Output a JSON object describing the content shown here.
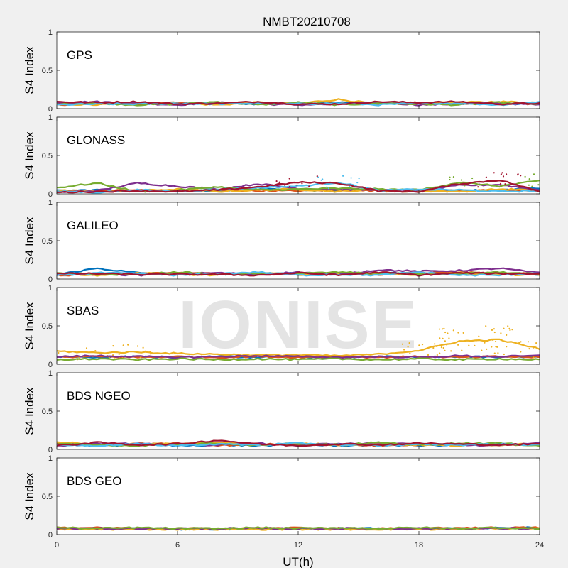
{
  "figure": {
    "title": "NMBT20210708",
    "watermark": "IONISE",
    "background": "#f0f0f0"
  },
  "chart_data": {
    "type": "scatter",
    "title": "NMBT20210708",
    "xlabel": "UT(h)",
    "ylabel": "S4 Index",
    "xlim": [
      0,
      24
    ],
    "ylim": [
      0,
      1
    ],
    "xticks": [
      "0",
      "6",
      "12",
      "18",
      "24"
    ],
    "yticks": [
      "0",
      "0.5",
      "1"
    ],
    "series_colors": [
      "#0072BD",
      "#D95319",
      "#EDB120",
      "#7E2F8E",
      "#77AC30",
      "#4DBEEE",
      "#A2142F"
    ],
    "panels": [
      {
        "name": "GPS",
        "x": [
          0,
          2,
          4,
          6,
          8,
          10,
          12,
          14,
          16,
          18,
          20,
          22,
          24
        ],
        "series": [
          {
            "values": [
              0.07,
              0.06,
              0.07,
              0.06,
              0.07,
              0.06,
              0.07,
              0.08,
              0.07,
              0.06,
              0.07,
              0.06,
              0.07
            ]
          },
          {
            "values": [
              0.05,
              0.07,
              0.06,
              0.08,
              0.06,
              0.07,
              0.06,
              0.07,
              0.06,
              0.08,
              0.06,
              0.07,
              0.06
            ]
          },
          {
            "values": [
              0.06,
              0.05,
              0.08,
              0.07,
              0.05,
              0.08,
              0.07,
              0.12,
              0.06,
              0.07,
              0.08,
              0.09,
              0.08
            ]
          },
          {
            "values": [
              0.08,
              0.09,
              0.07,
              0.05,
              0.08,
              0.06,
              0.05,
              0.06,
              0.08,
              0.05,
              0.06,
              0.07,
              0.05
            ]
          },
          {
            "values": [
              0.06,
              0.07,
              0.05,
              0.06,
              0.09,
              0.05,
              0.08,
              0.05,
              0.07,
              0.06,
              0.05,
              0.08,
              0.06
            ]
          },
          {
            "values": [
              0.05,
              0.06,
              0.06,
              0.07,
              0.06,
              0.07,
              0.06,
              0.07,
              0.05,
              0.07,
              0.07,
              0.05,
              0.09
            ]
          },
          {
            "values": [
              0.09,
              0.08,
              0.09,
              0.06,
              0.07,
              0.09,
              0.06,
              0.06,
              0.09,
              0.08,
              0.09,
              0.06,
              0.07
            ]
          }
        ]
      },
      {
        "name": "GLONASS",
        "x": [
          0,
          2,
          4,
          6,
          8,
          10,
          12,
          14,
          16,
          18,
          20,
          22,
          24
        ],
        "series": [
          {
            "values": [
              0.04,
              0.05,
              0.04,
              0.05,
              0.04,
              0.06,
              0.05,
              0.04,
              0.05,
              0.05,
              0.04,
              0.05,
              0.07
            ]
          },
          {
            "values": [
              0.03,
              0.04,
              0.05,
              0.04,
              0.05,
              0.04,
              0.04,
              0.05,
              0.04,
              0.03,
              0.05,
              0.04,
              0.04
            ]
          },
          {
            "values": [
              0.05,
              0.03,
              0.04,
              0.06,
              0.03,
              0.05,
              0.06,
              0.03,
              0.06,
              0.04,
              0.03,
              0.06,
              0.05
            ]
          },
          {
            "values": [
              0.02,
              0.04,
              0.14,
              0.1,
              0.06,
              0.13,
              0.07,
              0.06,
              0.05,
              0.04,
              0.11,
              0.12,
              0.05
            ]
          },
          {
            "values": [
              0.08,
              0.14,
              0.03,
              0.05,
              0.09,
              0.05,
              0.06,
              0.07,
              0.06,
              0.05,
              0.15,
              0.1,
              0.17
            ]
          },
          {
            "values": [
              0.03,
              0.02,
              0.05,
              0.03,
              0.06,
              0.08,
              0.1,
              0.15,
              0.04,
              0.06,
              0.05,
              0.03,
              0.04
            ]
          },
          {
            "values": [
              0.02,
              0.03,
              0.04,
              0.03,
              0.05,
              0.09,
              0.15,
              0.14,
              0.04,
              0.03,
              0.13,
              0.18,
              0.03
            ]
          }
        ]
      },
      {
        "name": "GALILEO",
        "x": [
          0,
          2,
          4,
          6,
          8,
          10,
          12,
          14,
          16,
          18,
          20,
          22,
          24
        ],
        "series": [
          {
            "values": [
              0.06,
              0.14,
              0.08,
              0.07,
              0.06,
              0.07,
              0.08,
              0.07,
              0.08,
              0.07,
              0.06,
              0.08,
              0.06
            ]
          },
          {
            "values": [
              0.05,
              0.06,
              0.07,
              0.08,
              0.07,
              0.06,
              0.07,
              0.08,
              0.06,
              0.08,
              0.09,
              0.07,
              0.07
            ]
          },
          {
            "values": [
              0.07,
              0.05,
              0.08,
              0.06,
              0.05,
              0.08,
              0.06,
              0.07,
              0.07,
              0.06,
              0.08,
              0.06,
              0.05
            ]
          },
          {
            "values": [
              0.06,
              0.07,
              0.05,
              0.07,
              0.08,
              0.06,
              0.09,
              0.06,
              0.12,
              0.1,
              0.11,
              0.14,
              0.08
            ]
          },
          {
            "values": [
              0.08,
              0.06,
              0.06,
              0.09,
              0.06,
              0.07,
              0.07,
              0.09,
              0.07,
              0.07,
              0.07,
              0.09,
              0.06
            ]
          },
          {
            "values": [
              0.05,
              0.08,
              0.07,
              0.05,
              0.07,
              0.09,
              0.05,
              0.06,
              0.05,
              0.09,
              0.05,
              0.05,
              0.08
            ]
          },
          {
            "values": [
              0.07,
              0.07,
              0.06,
              0.06,
              0.06,
              0.05,
              0.08,
              0.05,
              0.09,
              0.05,
              0.08,
              0.07,
              0.07
            ]
          }
        ]
      },
      {
        "name": "SBAS",
        "x": [
          0,
          2,
          4,
          6,
          8,
          10,
          12,
          14,
          16,
          18,
          20,
          22,
          24
        ],
        "series": [
          {
            "values": [
              0.1,
              0.09,
              0.1,
              0.09,
              0.1,
              0.09,
              0.1,
              0.09,
              0.1,
              0.09,
              0.1,
              0.09,
              0.1
            ]
          },
          {
            "values": [
              0.09,
              0.1,
              0.09,
              0.1,
              0.09,
              0.1,
              0.09,
              0.1,
              0.09,
              0.1,
              0.09,
              0.1,
              0.09
            ]
          },
          {
            "values": [
              0.17,
              0.15,
              0.16,
              0.14,
              0.13,
              0.12,
              0.12,
              0.11,
              0.13,
              0.18,
              0.3,
              0.32,
              0.2
            ]
          },
          {
            "values": [
              0.1,
              0.11,
              0.1,
              0.09,
              0.1,
              0.11,
              0.1,
              0.09,
              0.1,
              0.09,
              0.11,
              0.1,
              0.11
            ]
          },
          {
            "values": [
              0.06,
              0.07,
              0.06,
              0.07,
              0.06,
              0.07,
              0.06,
              0.07,
              0.06,
              0.07,
              0.06,
              0.07,
              0.06
            ]
          }
        ]
      },
      {
        "name": "BDS NGEO",
        "x": [
          0,
          2,
          4,
          6,
          8,
          10,
          12,
          14,
          16,
          18,
          20,
          22,
          24
        ],
        "series": [
          {
            "values": [
              0.06,
              0.05,
              0.06,
              0.05,
              0.06,
              0.05,
              0.06,
              0.05,
              0.06,
              0.05,
              0.06,
              0.07,
              0.06
            ]
          },
          {
            "values": [
              0.08,
              0.07,
              0.06,
              0.08,
              0.05,
              0.07,
              0.06,
              0.07,
              0.05,
              0.06,
              0.07,
              0.06,
              0.07
            ]
          },
          {
            "values": [
              0.1,
              0.06,
              0.08,
              0.07,
              0.09,
              0.06,
              0.08,
              0.06,
              0.07,
              0.06,
              0.05,
              0.06,
              0.08
            ]
          },
          {
            "values": [
              0.05,
              0.08,
              0.07,
              0.06,
              0.06,
              0.08,
              0.05,
              0.08,
              0.08,
              0.07,
              0.06,
              0.05,
              0.09
            ]
          },
          {
            "values": [
              0.07,
              0.06,
              0.05,
              0.07,
              0.08,
              0.05,
              0.07,
              0.06,
              0.09,
              0.06,
              0.08,
              0.08,
              0.05
            ]
          },
          {
            "values": [
              0.06,
              0.05,
              0.07,
              0.05,
              0.07,
              0.06,
              0.08,
              0.06,
              0.05,
              0.07,
              0.06,
              0.07,
              0.06
            ]
          },
          {
            "values": [
              0.05,
              0.09,
              0.06,
              0.07,
              0.12,
              0.07,
              0.05,
              0.07,
              0.06,
              0.08,
              0.07,
              0.06,
              0.07
            ]
          }
        ]
      },
      {
        "name": "BDS GEO",
        "x": [
          0,
          2,
          4,
          6,
          8,
          10,
          12,
          14,
          16,
          18,
          20,
          22,
          24
        ],
        "series": [
          {
            "values": [
              0.08,
              0.08,
              0.08,
              0.07,
              0.07,
              0.08,
              0.08,
              0.08,
              0.08,
              0.08,
              0.08,
              0.09,
              0.09
            ]
          },
          {
            "values": [
              0.09,
              0.09,
              0.08,
              0.08,
              0.08,
              0.08,
              0.09,
              0.08,
              0.08,
              0.08,
              0.09,
              0.09,
              0.09
            ]
          },
          {
            "values": [
              0.07,
              0.07,
              0.07,
              0.07,
              0.07,
              0.07,
              0.07,
              0.07,
              0.07,
              0.07,
              0.07,
              0.08,
              0.08
            ]
          },
          {
            "values": [
              0.08,
              0.08,
              0.08,
              0.08,
              0.08,
              0.08,
              0.08,
              0.08,
              0.08,
              0.08,
              0.08,
              0.08,
              0.08
            ]
          },
          {
            "values": [
              0.09,
              0.08,
              0.09,
              0.08,
              0.08,
              0.09,
              0.08,
              0.09,
              0.08,
              0.09,
              0.08,
              0.09,
              0.08
            ]
          }
        ]
      }
    ]
  }
}
